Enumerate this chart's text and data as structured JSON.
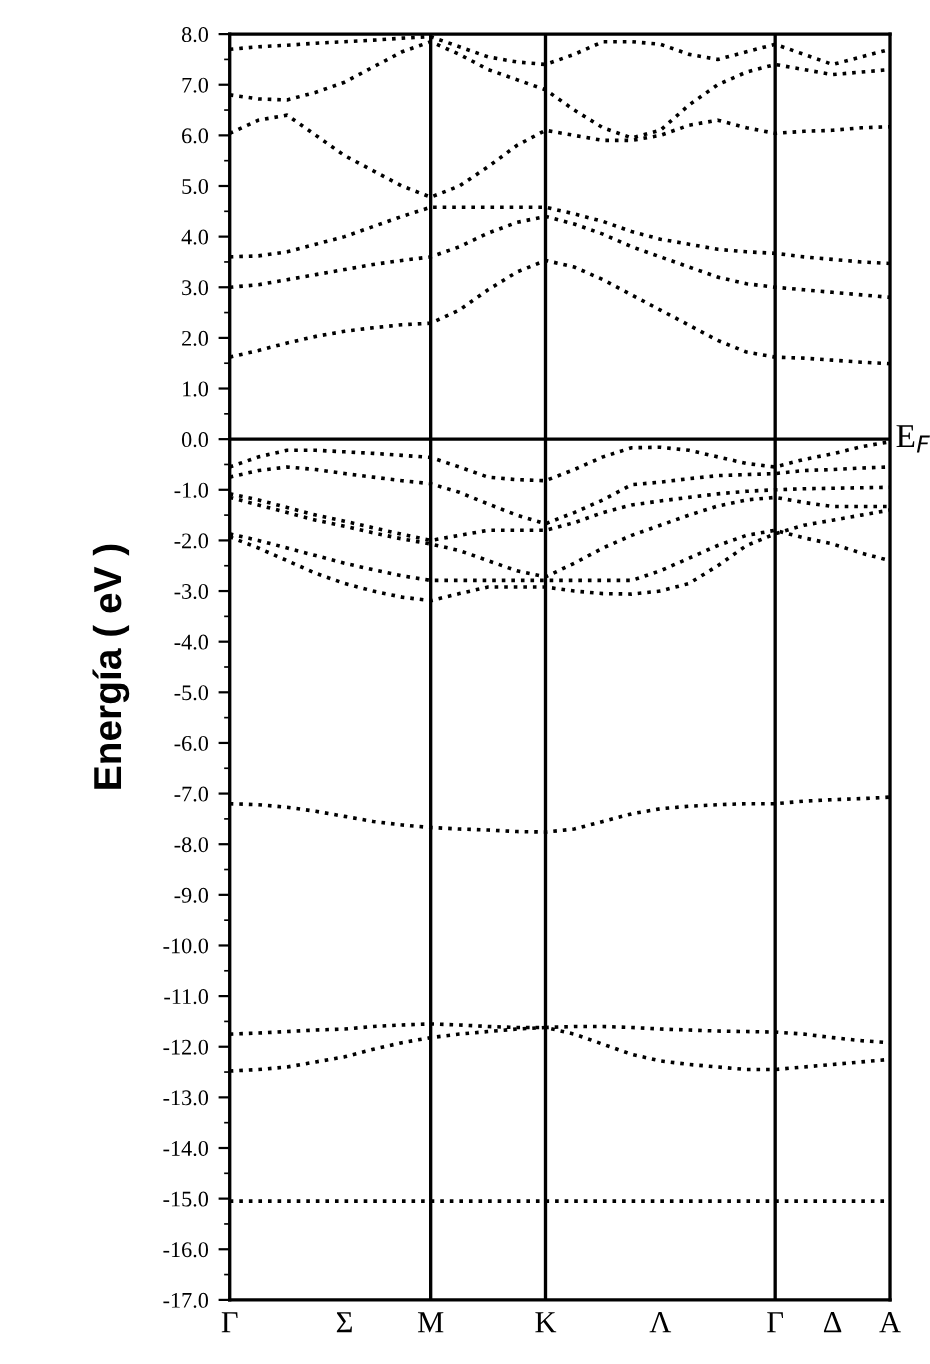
{
  "chart_data": {
    "type": "line",
    "ylabel": "Energía ( eV )",
    "ylim": [
      -17,
      8
    ],
    "categories": [
      "Γ",
      null,
      null,
      null,
      "Σ",
      null,
      null,
      "M",
      null,
      null,
      null,
      "K",
      null,
      null,
      null,
      "Λ",
      null,
      null,
      null,
      "Γ",
      null,
      "Δ",
      null,
      "A"
    ],
    "yticks": [
      {
        "value": 8,
        "label": "8.0"
      },
      {
        "value": 7,
        "label": "7.0"
      },
      {
        "value": 6,
        "label": "6.0"
      },
      {
        "value": 5,
        "label": "5.0"
      },
      {
        "value": 4,
        "label": "4.0"
      },
      {
        "value": 3,
        "label": "3.0"
      },
      {
        "value": 2,
        "label": "2.0"
      },
      {
        "value": 1,
        "label": "1.0"
      },
      {
        "value": 0,
        "label": "0.0"
      },
      {
        "value": -1,
        "label": "-1.0"
      },
      {
        "value": -2,
        "label": "-2.0"
      },
      {
        "value": -3,
        "label": "-3.0"
      },
      {
        "value": -4,
        "label": "-4.0"
      },
      {
        "value": -5,
        "label": "-5.0"
      },
      {
        "value": -6,
        "label": "-6.0"
      },
      {
        "value": -7,
        "label": "-7.0"
      },
      {
        "value": -8,
        "label": "-8.0"
      },
      {
        "value": -9,
        "label": "-9.0"
      },
      {
        "value": -10,
        "label": "-10.0"
      },
      {
        "value": -11,
        "label": "-11.0"
      },
      {
        "value": -12,
        "label": "-12.0"
      },
      {
        "value": -13,
        "label": "-13.0"
      },
      {
        "value": -14,
        "label": "-14.0"
      },
      {
        "value": -15,
        "label": "-15.0"
      },
      {
        "value": -16,
        "label": "-16.0"
      },
      {
        "value": -17,
        "label": "-17.0"
      },
      {
        "value": 7.5,
        "label": null
      },
      {
        "value": 6.5,
        "label": null
      },
      {
        "value": 5.5,
        "label": null
      },
      {
        "value": 4.5,
        "label": null
      },
      {
        "value": 3.5,
        "label": null
      },
      {
        "value": 2.5,
        "label": null
      },
      {
        "value": 1.5,
        "label": null
      },
      {
        "value": 0.5,
        "label": null
      },
      {
        "value": -0.5,
        "label": null
      },
      {
        "value": -1.5,
        "label": null
      },
      {
        "value": -2.5,
        "label": null
      },
      {
        "value": -3.5,
        "label": null
      },
      {
        "value": -4.5,
        "label": null
      },
      {
        "value": -5.5,
        "label": null
      },
      {
        "value": -6.5,
        "label": null
      },
      {
        "value": -7.5,
        "label": null
      },
      {
        "value": -8.5,
        "label": null
      },
      {
        "value": -9.5,
        "label": null
      },
      {
        "value": -10.5,
        "label": null
      },
      {
        "value": -11.5,
        "label": null
      },
      {
        "value": -12.5,
        "label": null
      },
      {
        "value": -13.5,
        "label": null
      },
      {
        "value": -14.5,
        "label": null
      },
      {
        "value": -15.5,
        "label": null
      },
      {
        "value": -16.5,
        "label": null
      }
    ],
    "grid": false,
    "legend": false,
    "marker": "none",
    "line_style": "dotted",
    "ref_lines": [
      {
        "axis": "y",
        "value": 0,
        "label": "E$_{F}$",
        "color": "#000000",
        "line_style": "solid"
      },
      {
        "axis": "x",
        "value": "M",
        "color": "#000000",
        "line_style": "solid"
      },
      {
        "axis": "x",
        "value": "K",
        "color": "#000000",
        "line_style": "solid"
      },
      {
        "axis": "x",
        "value": "Γ",
        "color": "#000000",
        "line_style": "solid"
      }
    ],
    "series": [
      {
        "color": "#000000",
        "values": [
          1.62,
          1.75,
          1.9,
          2.03,
          2.13,
          2.2,
          2.26,
          2.29,
          2.55,
          2.95,
          3.3,
          3.53,
          3.4,
          3.15,
          2.85,
          2.55,
          2.25,
          1.95,
          1.72,
          1.62,
          1.6,
          1.56,
          1.52,
          1.49
        ]
      },
      {
        "color": "#000000",
        "values": [
          3.0,
          3.05,
          3.15,
          3.25,
          3.35,
          3.45,
          3.53,
          3.6,
          3.8,
          4.07,
          4.28,
          4.4,
          4.25,
          4.05,
          3.8,
          3.6,
          3.4,
          3.2,
          3.07,
          3.0,
          2.95,
          2.9,
          2.85,
          2.8
        ]
      },
      {
        "color": "#000000",
        "values": [
          3.6,
          3.62,
          3.7,
          3.85,
          4.0,
          4.2,
          4.4,
          4.58,
          4.58,
          4.58,
          4.58,
          4.58,
          4.45,
          4.3,
          4.1,
          3.95,
          3.85,
          3.75,
          3.7,
          3.67,
          3.6,
          3.55,
          3.5,
          3.47
        ]
      },
      {
        "color": "#000000",
        "values": [
          6.04,
          6.3,
          6.4,
          6.0,
          5.6,
          5.3,
          5.0,
          4.78,
          5.0,
          5.38,
          5.8,
          6.1,
          6.0,
          5.9,
          5.9,
          6.0,
          6.2,
          6.3,
          6.15,
          6.04,
          6.08,
          6.1,
          6.15,
          6.17
        ]
      },
      {
        "color": "#000000",
        "values": [
          6.8,
          6.72,
          6.7,
          6.85,
          7.05,
          7.35,
          7.65,
          7.85,
          7.6,
          7.3,
          7.1,
          6.9,
          6.5,
          6.15,
          5.95,
          6.1,
          6.6,
          7.0,
          7.25,
          7.4,
          7.3,
          7.2,
          7.25,
          7.3
        ]
      },
      {
        "color": "#000000",
        "values": [
          7.7,
          7.75,
          7.78,
          7.82,
          7.85,
          7.88,
          7.92,
          7.95,
          7.75,
          7.55,
          7.45,
          7.4,
          7.6,
          7.85,
          7.85,
          7.8,
          7.6,
          7.5,
          7.65,
          7.8,
          7.6,
          7.4,
          7.55,
          7.7
        ]
      },
      {
        "color": "#000000",
        "values": [
          -0.55,
          -0.35,
          -0.22,
          -0.22,
          -0.25,
          -0.28,
          -0.32,
          -0.36,
          -0.55,
          -0.75,
          -0.8,
          -0.82,
          -0.6,
          -0.35,
          -0.17,
          -0.16,
          -0.22,
          -0.35,
          -0.48,
          -0.55,
          -0.4,
          -0.29,
          -0.15,
          -0.05
        ]
      },
      {
        "color": "#000000",
        "values": [
          -0.75,
          -0.62,
          -0.55,
          -0.6,
          -0.68,
          -0.75,
          -0.82,
          -0.88,
          -1.05,
          -1.28,
          -1.5,
          -1.67,
          -1.45,
          -1.2,
          -0.9,
          -0.85,
          -0.78,
          -0.72,
          -0.7,
          -0.68,
          -0.62,
          -0.6,
          -0.57,
          -0.55
        ]
      },
      {
        "color": "#000000",
        "values": [
          -1.08,
          -1.2,
          -1.35,
          -1.5,
          -1.62,
          -1.75,
          -1.88,
          -2.0,
          -1.9,
          -1.8,
          -1.8,
          -1.8,
          -1.65,
          -1.45,
          -1.3,
          -1.22,
          -1.15,
          -1.08,
          -1.03,
          -1.0,
          -0.98,
          -0.97,
          -0.96,
          -0.95
        ]
      },
      {
        "color": "#000000",
        "values": [
          -1.15,
          -1.3,
          -1.45,
          -1.6,
          -1.72,
          -1.85,
          -1.97,
          -2.07,
          -2.2,
          -2.4,
          -2.6,
          -2.72,
          -2.45,
          -2.15,
          -1.9,
          -1.7,
          -1.5,
          -1.32,
          -1.2,
          -1.15,
          -1.25,
          -1.33,
          -1.33,
          -1.33
        ]
      },
      {
        "color": "#000000",
        "values": [
          -1.87,
          -2.0,
          -2.15,
          -2.3,
          -2.45,
          -2.58,
          -2.7,
          -2.79,
          -2.79,
          -2.79,
          -2.79,
          -2.79,
          -2.79,
          -2.79,
          -2.79,
          -2.6,
          -2.35,
          -2.1,
          -1.9,
          -1.8,
          -1.95,
          -2.07,
          -2.25,
          -2.4
        ]
      },
      {
        "color": "#000000",
        "values": [
          -1.93,
          -2.15,
          -2.4,
          -2.65,
          -2.85,
          -3.0,
          -3.12,
          -3.19,
          -3.05,
          -2.92,
          -2.92,
          -2.92,
          -3.0,
          -3.05,
          -3.06,
          -3.0,
          -2.85,
          -2.5,
          -2.1,
          -1.87,
          -1.7,
          -1.6,
          -1.5,
          -1.4
        ]
      },
      {
        "color": "#000000",
        "values": [
          -7.2,
          -7.22,
          -7.27,
          -7.35,
          -7.45,
          -7.55,
          -7.62,
          -7.67,
          -7.7,
          -7.72,
          -7.75,
          -7.76,
          -7.7,
          -7.55,
          -7.4,
          -7.3,
          -7.25,
          -7.22,
          -7.2,
          -7.2,
          -7.15,
          -7.12,
          -7.1,
          -7.07
        ]
      },
      {
        "color": "#000000",
        "values": [
          -11.75,
          -11.73,
          -11.7,
          -11.67,
          -11.65,
          -11.6,
          -11.57,
          -11.55,
          -11.57,
          -11.6,
          -11.62,
          -11.62,
          -11.6,
          -11.6,
          -11.62,
          -11.65,
          -11.67,
          -11.69,
          -11.7,
          -11.71,
          -11.75,
          -11.82,
          -11.88,
          -11.92
        ]
      },
      {
        "color": "#000000",
        "values": [
          -12.48,
          -12.45,
          -12.4,
          -12.3,
          -12.2,
          -12.05,
          -11.92,
          -11.82,
          -11.75,
          -11.7,
          -11.65,
          -11.62,
          -11.75,
          -11.95,
          -12.15,
          -12.28,
          -12.35,
          -12.4,
          -12.45,
          -12.45,
          -12.4,
          -12.35,
          -12.3,
          -12.25
        ]
      },
      {
        "color": "#000000",
        "values": [
          -15.05,
          -15.05,
          -15.05,
          -15.05,
          -15.05,
          -15.05,
          -15.05,
          -15.05,
          -15.05,
          -15.05,
          -15.05,
          -15.05,
          -15.05,
          -15.05,
          -15.05,
          -15.05,
          -15.05,
          -15.05,
          -15.05,
          -15.05,
          -15.05,
          -15.05,
          -15.05,
          -15.05
        ]
      }
    ]
  }
}
